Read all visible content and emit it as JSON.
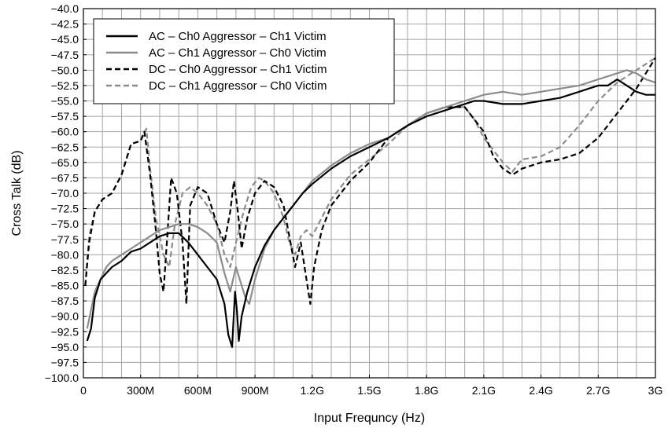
{
  "chart_data": {
    "type": "line",
    "title": "",
    "xlabel": "Input Frequncy (Hz)",
    "ylabel": "Cross Talk (dB)",
    "xlim": [
      0,
      3000000000
    ],
    "ylim": [
      -100,
      -40
    ],
    "grid": true,
    "legend_position": "top-left",
    "x_ticks": [
      {
        "value": 0,
        "label": "0"
      },
      {
        "value": 300000000,
        "label": "300M"
      },
      {
        "value": 600000000,
        "label": "600M"
      },
      {
        "value": 900000000,
        "label": "900M"
      },
      {
        "value": 1200000000,
        "label": "1.2G"
      },
      {
        "value": 1500000000,
        "label": "1.5G"
      },
      {
        "value": 1800000000,
        "label": "1.8G"
      },
      {
        "value": 2100000000,
        "label": "2.1G"
      },
      {
        "value": 2400000000,
        "label": "2.4G"
      },
      {
        "value": 2700000000,
        "label": "2.7G"
      },
      {
        "value": 3000000000,
        "label": "3G"
      }
    ],
    "y_ticks": [
      {
        "value": -40,
        "label": "−40.0"
      },
      {
        "value": -42.5,
        "label": "−42.5"
      },
      {
        "value": -45,
        "label": "−45.0"
      },
      {
        "value": -47.5,
        "label": "−47.5"
      },
      {
        "value": -50,
        "label": "−50.0"
      },
      {
        "value": -52.5,
        "label": "−52.5"
      },
      {
        "value": -55,
        "label": "−55.0"
      },
      {
        "value": -57.5,
        "label": "−57.5"
      },
      {
        "value": -60,
        "label": "−60.0"
      },
      {
        "value": -62.5,
        "label": "−62.5"
      },
      {
        "value": -65,
        "label": "−65.0"
      },
      {
        "value": -67.5,
        "label": "−67.5"
      },
      {
        "value": -70,
        "label": "−70.0"
      },
      {
        "value": -72.5,
        "label": "−72.5"
      },
      {
        "value": -75,
        "label": "−75.0"
      },
      {
        "value": -77.5,
        "label": "−77.5"
      },
      {
        "value": -80,
        "label": "−80.0"
      },
      {
        "value": -82.5,
        "label": "−82.5"
      },
      {
        "value": -85,
        "label": "−85.0"
      },
      {
        "value": -87.5,
        "label": "−87.5"
      },
      {
        "value": -90,
        "label": "−90.0"
      },
      {
        "value": -92.5,
        "label": "−92.5"
      },
      {
        "value": -95,
        "label": "−95.0"
      },
      {
        "value": -97.5,
        "label": "−97.5"
      },
      {
        "value": -100,
        "label": "−100.0"
      }
    ],
    "series": [
      {
        "name": "AC – Ch0 Aggressor – Ch1 Victim",
        "color": "#000000",
        "dash": "solid",
        "x": [
          20000000,
          40000000,
          60000000,
          90000000,
          120000000,
          150000000,
          200000000,
          250000000,
          300000000,
          350000000,
          400000000,
          450000000,
          500000000,
          550000000,
          600000000,
          650000000,
          700000000,
          740000000,
          760000000,
          780000000,
          795000000,
          805000000,
          815000000,
          830000000,
          860000000,
          900000000,
          950000000,
          1000000000,
          1050000000,
          1100000000,
          1150000000,
          1200000000,
          1300000000,
          1400000000,
          1500000000,
          1600000000,
          1700000000,
          1800000000,
          1900000000,
          2000000000,
          2050000000,
          2100000000,
          2200000000,
          2300000000,
          2400000000,
          2500000000,
          2600000000,
          2650000000,
          2700000000,
          2750000000,
          2800000000,
          2850000000,
          2900000000,
          2950000000,
          3000000000
        ],
        "y": [
          -94,
          -92,
          -87,
          -84,
          -83,
          -82,
          -81,
          -79.5,
          -79,
          -78,
          -77,
          -76.5,
          -76.5,
          -78,
          -80,
          -82,
          -84,
          -88,
          -93,
          -95,
          -86,
          -89,
          -94,
          -90,
          -86,
          -82,
          -78.5,
          -76,
          -74,
          -72,
          -70,
          -68.5,
          -66,
          -64,
          -62.5,
          -61,
          -59,
          -57.5,
          -56.5,
          -55.5,
          -55,
          -55,
          -55.5,
          -55.5,
          -55,
          -54.5,
          -53.5,
          -53,
          -52.5,
          -52.5,
          -51.5,
          -52.5,
          -53.5,
          -54,
          -54
        ]
      },
      {
        "name": "AC – Ch1 Aggressor – Ch0 Victim",
        "color": "#8c8c8c",
        "dash": "solid",
        "x": [
          20000000,
          40000000,
          60000000,
          90000000,
          120000000,
          150000000,
          200000000,
          250000000,
          300000000,
          350000000,
          400000000,
          450000000,
          500000000,
          550000000,
          600000000,
          650000000,
          700000000,
          740000000,
          770000000,
          800000000,
          820000000,
          850000000,
          870000000,
          900000000,
          950000000,
          1000000000,
          1050000000,
          1100000000,
          1150000000,
          1200000000,
          1300000000,
          1400000000,
          1500000000,
          1600000000,
          1700000000,
          1800000000,
          1900000000,
          2000000000,
          2100000000,
          2200000000,
          2300000000,
          2400000000,
          2500000000,
          2600000000,
          2700000000,
          2750000000,
          2800000000,
          2850000000,
          2900000000,
          2950000000,
          3000000000
        ],
        "y": [
          -92,
          -89,
          -86,
          -84,
          -82,
          -81,
          -80,
          -79,
          -78,
          -77,
          -76,
          -75.5,
          -75,
          -75,
          -75.5,
          -76.5,
          -78,
          -83,
          -86,
          -82,
          -84,
          -87,
          -88,
          -84,
          -79,
          -76,
          -74,
          -72,
          -70,
          -68,
          -65.5,
          -63.5,
          -62,
          -61,
          -59,
          -57,
          -56,
          -55,
          -54,
          -53.5,
          -54,
          -53.5,
          -53,
          -52.5,
          -51.5,
          -51,
          -50.5,
          -50,
          -50.5,
          -51.5,
          -52
        ]
      },
      {
        "name": "DC – Ch0 Aggressor – Ch1 Victim",
        "color": "#000000",
        "dash": "dashed",
        "x": [
          10000000,
          30000000,
          60000000,
          100000000,
          150000000,
          200000000,
          250000000,
          300000000,
          320000000,
          350000000,
          380000000,
          400000000,
          420000000,
          440000000,
          460000000,
          490000000,
          520000000,
          540000000,
          560000000,
          600000000,
          650000000,
          700000000,
          740000000,
          770000000,
          790000000,
          810000000,
          830000000,
          860000000,
          900000000,
          950000000,
          1000000000,
          1050000000,
          1080000000,
          1110000000,
          1140000000,
          1170000000,
          1190000000,
          1210000000,
          1250000000,
          1300000000,
          1400000000,
          1500000000,
          1600000000,
          1700000000,
          1800000000,
          1900000000,
          2000000000,
          2050000000,
          2100000000,
          2150000000,
          2200000000,
          2250000000,
          2300000000,
          2400000000,
          2500000000,
          2600000000,
          2700000000,
          2800000000,
          2900000000,
          3000000000
        ],
        "y": [
          -85,
          -78,
          -73,
          -71,
          -70,
          -67,
          -62,
          -61.5,
          -60,
          -67,
          -76,
          -83,
          -86,
          -77,
          -67.5,
          -70,
          -78,
          -88,
          -72,
          -69,
          -70,
          -75,
          -78,
          -73,
          -68,
          -73,
          -79,
          -74,
          -70,
          -68,
          -69,
          -72,
          -77,
          -82,
          -78,
          -84,
          -88,
          -82,
          -76,
          -72,
          -68,
          -65,
          -61,
          -59,
          -57,
          -56,
          -56,
          -58,
          -60,
          -64,
          -66,
          -67,
          -66,
          -65,
          -64.5,
          -63.5,
          -61,
          -57,
          -53,
          -48
        ]
      },
      {
        "name": "DC – Ch1 Aggressor – Ch0 Victim",
        "color": "#8c8c8c",
        "dash": "dashed",
        "x": [
          10000000,
          30000000,
          60000000,
          100000000,
          150000000,
          200000000,
          250000000,
          300000000,
          330000000,
          350000000,
          380000000,
          420000000,
          450000000,
          480000000,
          520000000,
          560000000,
          600000000,
          650000000,
          700000000,
          740000000,
          770000000,
          800000000,
          840000000,
          880000000,
          920000000,
          950000000,
          1000000000,
          1050000000,
          1080000000,
          1110000000,
          1140000000,
          1170000000,
          1200000000,
          1250000000,
          1300000000,
          1400000000,
          1500000000,
          1600000000,
          1700000000,
          1800000000,
          1900000000,
          2000000000,
          2050000000,
          2100000000,
          2150000000,
          2200000000,
          2250000000,
          2300000000,
          2400000000,
          2500000000,
          2600000000,
          2700000000,
          2800000000,
          2900000000,
          3000000000
        ],
        "y": [
          -85,
          -77,
          -73,
          -71,
          -70,
          -67,
          -62,
          -61.5,
          -59.5,
          -66,
          -74,
          -80,
          -82,
          -75,
          -70,
          -69,
          -70,
          -72,
          -75,
          -80,
          -82,
          -78,
          -73,
          -69,
          -67.5,
          -68,
          -70,
          -74,
          -78,
          -80,
          -77,
          -76,
          -77,
          -74,
          -71,
          -67,
          -64.5,
          -62,
          -59,
          -57,
          -56,
          -56,
          -58,
          -61,
          -63,
          -65,
          -66.5,
          -64.5,
          -64,
          -62.5,
          -59,
          -55,
          -52,
          -50,
          -48
        ]
      }
    ]
  }
}
